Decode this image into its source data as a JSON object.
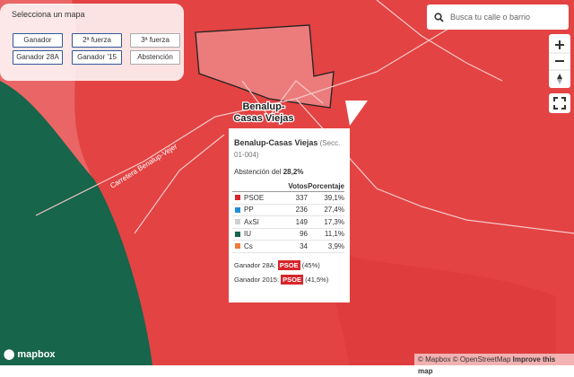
{
  "map_selector": {
    "title": "Selecciona un mapa",
    "buttons": [
      "Ganador",
      "2ª fuerza",
      "3ª fuerza",
      "Ganador 28A",
      "Ganador '15",
      "Abstención"
    ]
  },
  "search": {
    "placeholder": "Busca tu calle o barrio"
  },
  "map_labels": {
    "town": [
      "Benalup-",
      "Casas Viejas"
    ],
    "road": "Carretera Benalup-Vejer"
  },
  "popup": {
    "title": "Benalup-Casas Viejas",
    "section": "(Secc. 01-004)",
    "abstention_label": "Abstención del",
    "abstention": "28,2%",
    "columns": [
      "Votos",
      "Porcentaje"
    ],
    "rows": [
      {
        "party": "PSOE",
        "color": "#d7252b",
        "votes": 337,
        "percent": "39,1%"
      },
      {
        "party": "PP",
        "color": "#1f8fd6",
        "votes": 236,
        "percent": "27,4%"
      },
      {
        "party": "AxSí",
        "color": "#cfcfcf",
        "votes": 149,
        "percent": "17,3%"
      },
      {
        "party": "IU",
        "color": "#17654a",
        "votes": 96,
        "percent": "11,1%"
      },
      {
        "party": "Cs",
        "color": "#ee7b3a",
        "votes": 34,
        "percent": "3,9%"
      }
    ],
    "winners": [
      {
        "label": "Ganador 28A:",
        "party": "PSOE",
        "share": "(45%)"
      },
      {
        "label": "Ganador 2015:",
        "party": "PSOE",
        "share": "(41,5%)"
      }
    ]
  },
  "attribution": {
    "logo": "mapbox",
    "text": "© Mapbox © OpenStreetMap",
    "link": "Improve this map"
  }
}
